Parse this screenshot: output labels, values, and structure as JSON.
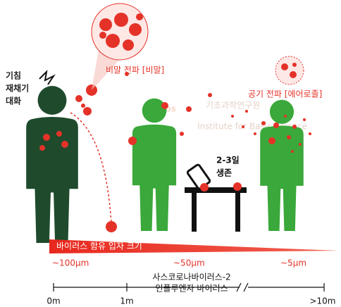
{
  "source_labels": [
    "기침",
    "재채기",
    "대화"
  ],
  "droplet_label": "비말 전파 [비말]",
  "aerosol_label": "공기 전파 [에어로졸]",
  "surface_label": [
    "2-3일",
    "생존"
  ],
  "watermark": {
    "korean": "기초과학연구원",
    "english": "Institute for Basic Science"
  },
  "size_bar": {
    "title": "바이러스 함유 입자 크기",
    "sizes": [
      "~100μm",
      "~50μm",
      "~5μm"
    ]
  },
  "distance_scale": {
    "viruses": [
      "사스코로나바이러스-2",
      "인플루엔자 바이러스"
    ],
    "ticks": [
      "0m",
      "1m",
      ">10m"
    ]
  }
}
